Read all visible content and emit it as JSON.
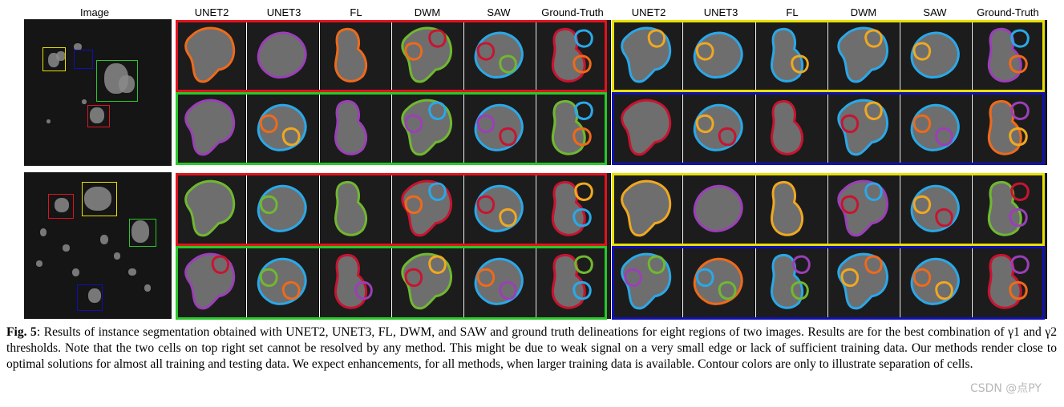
{
  "image_label": "Image",
  "methods": [
    "UNET2",
    "UNET3",
    "FL",
    "DWM",
    "SAW",
    "Ground-Truth"
  ],
  "colors": {
    "red": "#e0141e",
    "green": "#28c828",
    "yellow": "#e8e000",
    "blue": "#1010b4",
    "orange": "#ee6a1a",
    "purple": "#9b3fb8",
    "light_blue": "#2aa8e8",
    "crimson": "#c81430",
    "lime": "#70b830",
    "gold": "#f0a820"
  },
  "caption": {
    "label": "Fig. 5",
    "text": ":  Results of instance segmentation obtained with UNET2, UNET3, FL, DWM, and SAW and ground truth delineations for eight regions of two images. Results are for the best combination of γ1 and γ2 thresholds. Note that the two cells on top right set cannot be resolved by any method. This might be due to weak signal on a very small edge or lack of sufficient training data. Our methods render close to optimal solutions for almost all training and testing data. We expect enhancements, for all methods, when larger training data is available. Contour colors are only to illustrate separation of cells."
  },
  "watermark": "CSDN @点PY"
}
